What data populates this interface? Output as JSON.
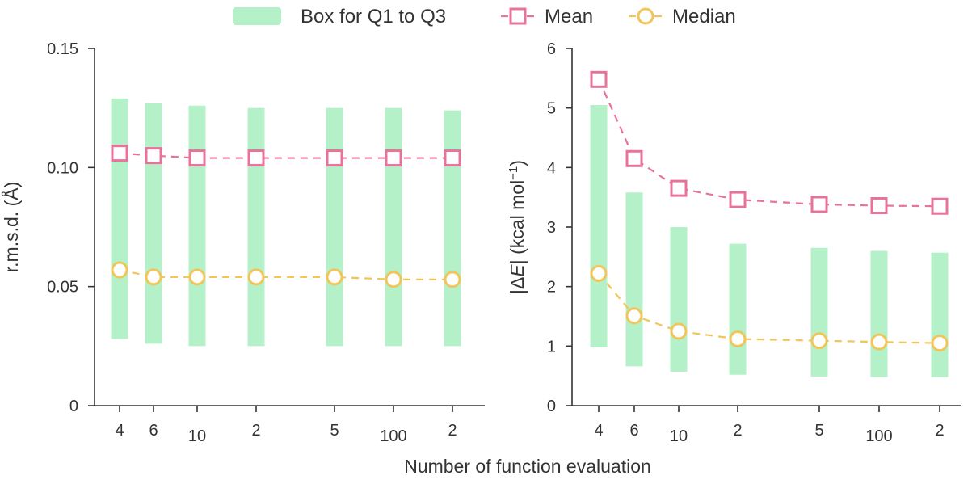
{
  "legend": {
    "box_label": "Box for Q1 to Q3",
    "mean_label": "Mean",
    "median_label": "Median"
  },
  "xlabel": "Number of function evaluation",
  "colors": {
    "box": "#b4f0c8",
    "mean": "#e8739a",
    "median": "#f2c55a",
    "axis": "#333333"
  },
  "chart_data": [
    {
      "type": "box",
      "ylabel": "r.m.s.d. (Å)",
      "ylim": [
        0,
        0.15
      ],
      "yticks": [
        "0",
        "0.05",
        "0.10",
        "0.15"
      ],
      "yticks_values": [
        0,
        0.05,
        0.1,
        0.15
      ],
      "categories": [
        "4",
        "6",
        "10",
        "2",
        "5",
        "100",
        "2"
      ],
      "q1": [
        0.028,
        0.026,
        0.025,
        0.025,
        0.025,
        0.025,
        0.025
      ],
      "q3": [
        0.129,
        0.127,
        0.126,
        0.125,
        0.125,
        0.125,
        0.124
      ],
      "mean": [
        0.106,
        0.105,
        0.104,
        0.104,
        0.104,
        0.104,
        0.104
      ],
      "median": [
        0.057,
        0.054,
        0.054,
        0.054,
        0.054,
        0.053,
        0.053
      ]
    },
    {
      "type": "box",
      "ylabel_parts": [
        "|Δ",
        "E",
        "| (kcal mol",
        "−1",
        ")"
      ],
      "ylim": [
        0,
        6
      ],
      "yticks": [
        "0",
        "1",
        "2",
        "3",
        "4",
        "5",
        "6"
      ],
      "yticks_values": [
        0,
        1,
        2,
        3,
        4,
        5,
        6
      ],
      "categories": [
        "4",
        "6",
        "10",
        "2",
        "5",
        "100",
        "2"
      ],
      "q1": [
        0.98,
        0.66,
        0.57,
        0.52,
        0.49,
        0.48,
        0.48
      ],
      "q3": [
        5.05,
        3.58,
        3.0,
        2.72,
        2.65,
        2.6,
        2.57
      ],
      "mean": [
        5.48,
        4.15,
        3.65,
        3.46,
        3.38,
        3.36,
        3.35
      ],
      "median": [
        2.22,
        1.51,
        1.25,
        1.12,
        1.09,
        1.07,
        1.05
      ]
    }
  ]
}
